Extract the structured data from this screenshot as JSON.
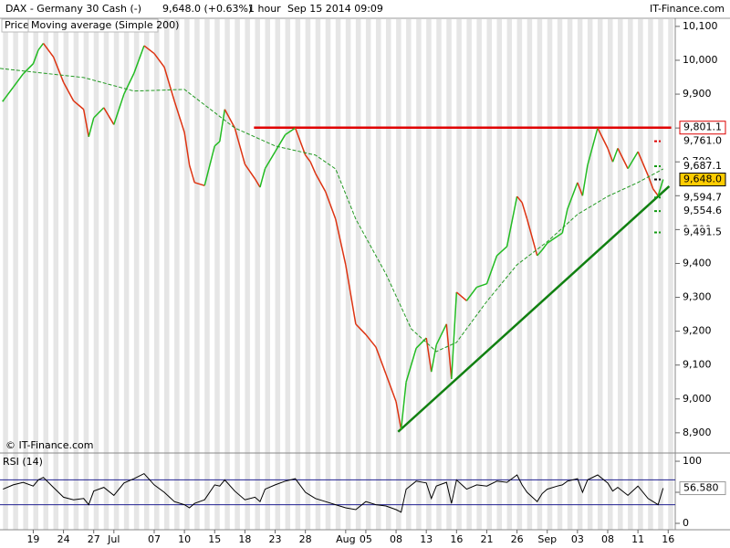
{
  "header": {
    "title": "DAX - Germany 30 Cash (-)",
    "quote": "9,648.0 (+0.63%)",
    "timeframe": "1 hour",
    "timestamp": "Sep 15 2014 09:09",
    "brand": "IT-Finance.com"
  },
  "chart_data": [
    {
      "type": "line",
      "credit": "© IT-Finance.com",
      "xlim": [
        -3.3,
        63.7
      ],
      "ylim": [
        8843,
        10124
      ],
      "xticks": [
        {
          "value": 0,
          "label": "19"
        },
        {
          "value": 3,
          "label": "24"
        },
        {
          "value": 6,
          "label": "27"
        },
        {
          "value": 8,
          "label": "Jul"
        },
        {
          "value": 12,
          "label": "07"
        },
        {
          "value": 15,
          "label": "10"
        },
        {
          "value": 18,
          "label": "15"
        },
        {
          "value": 21,
          "label": "18"
        },
        {
          "value": 24,
          "label": "23"
        },
        {
          "value": 27,
          "label": "28"
        },
        {
          "value": 31,
          "label": "Aug"
        },
        {
          "value": 33,
          "label": "05"
        },
        {
          "value": 36,
          "label": "08"
        },
        {
          "value": 39,
          "label": "13"
        },
        {
          "value": 42,
          "label": "16"
        },
        {
          "value": 45,
          "label": "21"
        },
        {
          "value": 48,
          "label": "26"
        },
        {
          "value": 51,
          "label": "Sep"
        },
        {
          "value": 54,
          "label": "03"
        },
        {
          "value": 57,
          "label": "08"
        },
        {
          "value": 60,
          "label": "11"
        },
        {
          "value": 63,
          "label": "16"
        }
      ],
      "yticks": [
        {
          "value": 8900,
          "label": "8,900"
        },
        {
          "value": 9000,
          "label": "9,000"
        },
        {
          "value": 9100,
          "label": "9,100"
        },
        {
          "value": 9200,
          "label": "9,200"
        },
        {
          "value": 9300,
          "label": "9,300"
        },
        {
          "value": 9400,
          "label": "9,400"
        },
        {
          "value": 9500,
          "label": "9,500"
        },
        {
          "value": 9600,
          "label": "9,600"
        },
        {
          "value": 9700,
          "label": "9,700"
        },
        {
          "value": 9800,
          "label": "9,800"
        },
        {
          "value": 9900,
          "label": "9,900"
        },
        {
          "value": 10000,
          "label": "10,000"
        },
        {
          "value": 10100,
          "label": "10,100"
        }
      ],
      "series": [
        {
          "name": "Price",
          "up_color": "#22bb22",
          "down_color": "#dd3311",
          "x": [
            -3,
            -2,
            -1,
            0,
            0.5,
            1,
            2,
            3,
            4,
            5,
            5.5,
            6,
            7,
            8,
            9,
            10,
            11,
            12,
            13,
            14,
            15,
            15.5,
            16,
            17,
            18,
            18.5,
            19,
            20,
            21,
            22,
            22.5,
            23,
            24,
            25,
            26,
            27,
            27.5,
            28,
            29,
            30,
            31,
            32,
            33,
            34,
            35,
            36,
            36.5,
            37,
            38,
            39,
            39.5,
            40,
            41,
            41.5,
            42,
            43,
            44,
            45,
            46,
            47,
            48,
            48.5,
            49,
            50,
            50.5,
            51,
            52,
            52.5,
            53,
            54,
            54.5,
            55,
            56,
            57,
            57.5,
            58,
            59,
            60,
            61,
            61.5,
            62,
            62.5
          ],
          "values": [
            9880,
            9920,
            9960,
            9990,
            10030,
            10050,
            10010,
            9935,
            9880,
            9855,
            9774,
            9830,
            9860,
            9810,
            9900,
            9962,
            10043,
            10020,
            9980,
            9880,
            9787,
            9690,
            9639,
            9630,
            9747,
            9760,
            9855,
            9800,
            9693,
            9650,
            9625,
            9680,
            9730,
            9780,
            9800,
            9720,
            9700,
            9666,
            9612,
            9531,
            9396,
            9221,
            9190,
            9153,
            9073,
            8992,
            8910,
            9050,
            9150,
            9180,
            9080,
            9160,
            9221,
            9059,
            9315,
            9290,
            9330,
            9340,
            9423,
            9450,
            9598,
            9580,
            9531,
            9423,
            9440,
            9460,
            9480,
            9490,
            9560,
            9639,
            9600,
            9690,
            9800,
            9740,
            9700,
            9740,
            9680,
            9730,
            9660,
            9620,
            9600,
            9648
          ]
        },
        {
          "name": "Moving average (Simple 200)",
          "color": "#229922",
          "dashed": true,
          "x": [
            -3.3,
            5,
            10,
            15,
            20,
            24,
            28,
            30,
            32,
            35,
            37.5,
            40,
            42,
            45,
            48,
            51,
            54,
            57,
            60,
            62.5
          ],
          "values": [
            9976,
            9949,
            9909,
            9914,
            9800,
            9747,
            9720,
            9679,
            9531,
            9369,
            9207,
            9140,
            9167,
            9288,
            9396,
            9464,
            9545,
            9598,
            9639,
            9679
          ]
        }
      ],
      "lines": [
        {
          "color": "#e00000",
          "x": [
            21.9,
            63.3
          ],
          "values": [
            9801.1,
            9801.1
          ]
        },
        {
          "color": "#108010",
          "x": [
            36.2,
            63.1
          ],
          "values": [
            8903,
            9628
          ]
        }
      ],
      "levels": [
        {
          "value": 9801.1,
          "label": "9,801.1",
          "color": "#dd0000",
          "fill": "#ffffff",
          "boxed": true
        },
        {
          "value": 9761.0,
          "label": "9,761.0",
          "color": "#dd0000",
          "fill": "#ffffff",
          "boxed": false
        },
        {
          "value": 9687.1,
          "label": "9,687.1",
          "color": "#119911",
          "fill": "#ffffff",
          "boxed": false
        },
        {
          "value": 9648.0,
          "label": "9,648.0",
          "color": "#000000",
          "fill": "#ffcc00",
          "boxed": true
        },
        {
          "value": 9594.7,
          "label": "9,594.7",
          "color": "#119911",
          "fill": "#ffffff",
          "boxed": false
        },
        {
          "value": 9554.6,
          "label": "9,554.6",
          "color": "#119911",
          "fill": "#ffffff",
          "boxed": false
        },
        {
          "value": 9491.5,
          "label": "9,491.5",
          "color": "#119911",
          "fill": "#ffffff",
          "boxed": false
        }
      ]
    },
    {
      "type": "line",
      "xlim": [
        -3.3,
        63.7
      ],
      "ylim": [
        -10.3,
        111.8
      ],
      "yticks": [
        0,
        50,
        100
      ],
      "bands": [
        30,
        70
      ],
      "band_color": "#202090",
      "series": [
        {
          "name": "RSI (14)",
          "color": "#000000",
          "x": [
            -3,
            -2,
            -1,
            0,
            0.5,
            1,
            2,
            3,
            4,
            5,
            5.5,
            6,
            7,
            8,
            9,
            10,
            11,
            12,
            13,
            14,
            15,
            15.5,
            16,
            17,
            18,
            18.5,
            19,
            20,
            21,
            22,
            22.5,
            23,
            24,
            25,
            26,
            27,
            27.5,
            28,
            29,
            30,
            31,
            32,
            33,
            34,
            35,
            36,
            36.5,
            37,
            38,
            39,
            39.5,
            40,
            41,
            41.5,
            42,
            43,
            44,
            45,
            46,
            47,
            48,
            48.5,
            49,
            50,
            50.5,
            51,
            52,
            52.5,
            53,
            54,
            54.5,
            55,
            56,
            57,
            57.5,
            58,
            59,
            60,
            61,
            61.5,
            62,
            62.5
          ],
          "values": [
            55,
            62,
            66,
            60,
            70,
            74,
            58,
            42,
            38,
            40,
            30,
            52,
            58,
            45,
            65,
            72,
            80,
            62,
            50,
            35,
            30,
            25,
            32,
            38,
            62,
            60,
            70,
            52,
            38,
            42,
            35,
            55,
            62,
            68,
            72,
            50,
            45,
            40,
            35,
            30,
            25,
            22,
            35,
            30,
            28,
            22,
            18,
            55,
            68,
            65,
            40,
            60,
            66,
            32,
            70,
            55,
            62,
            60,
            68,
            66,
            78,
            62,
            50,
            35,
            48,
            55,
            60,
            62,
            68,
            72,
            50,
            70,
            78,
            65,
            52,
            58,
            45,
            60,
            40,
            35,
            30,
            56.58
          ],
          "value_label": "56.580"
        }
      ]
    }
  ]
}
